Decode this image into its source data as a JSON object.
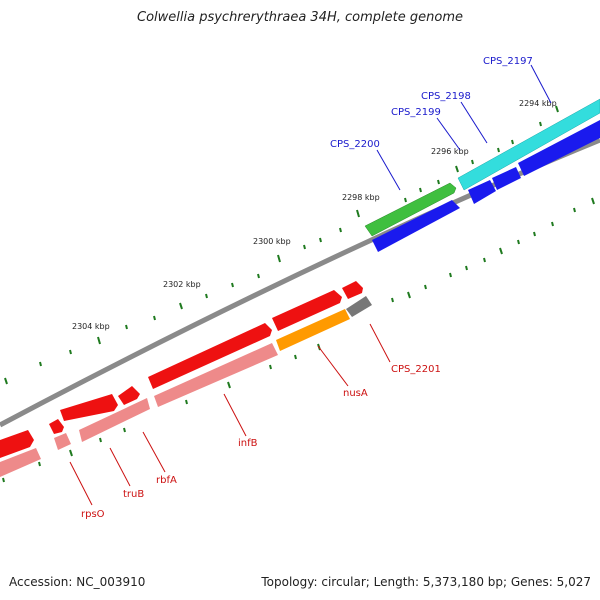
{
  "title": "Colwellia psychrerythraea 34H, complete genome",
  "accession": "Accession: NC_003910",
  "topology": "Topology: circular; Length: 5,373,180 bp; Genes: 5,027",
  "kbp_labels": [
    "2294 kbp",
    "2296 kbp",
    "2298 kbp",
    "2300 kbp",
    "2302 kbp",
    "2304 kbp"
  ],
  "gene_labels": [
    "CPS_2197",
    "CPS_2198",
    "CPS_2199",
    "CPS_2200",
    "CPS_2201",
    "nusA",
    "infB",
    "rbfA",
    "truB",
    "rpsO"
  ],
  "colors": {
    "blue_label": "#1a1acc",
    "red_label": "#cc1111",
    "tick": "#1f7a1f",
    "backbone": "#8a8a8a",
    "cyan": "#33dddd",
    "green": "#3fbf3f",
    "blue": "#1a1aee",
    "red": "#ee1111",
    "pink": "#ee8a8a",
    "orange": "#ff9a00",
    "gray": "#777777"
  }
}
